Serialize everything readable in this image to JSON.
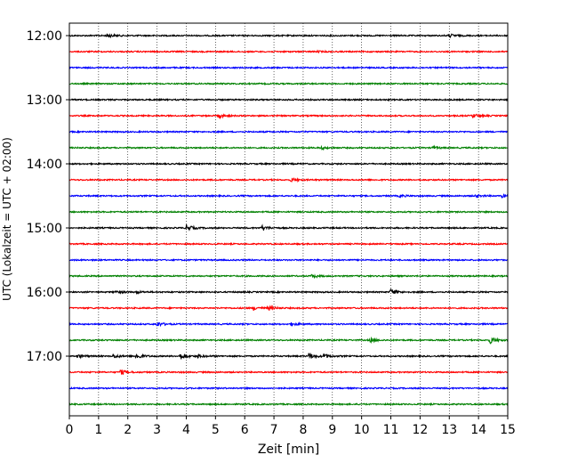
{
  "chart_data": {
    "type": "line",
    "title": "",
    "xlabel": "Zeit  [min]",
    "ylabel": "UTC (Lokalzeit = UTC + 02:00)",
    "xlim": [
      0,
      15
    ],
    "x_ticks": [
      "0",
      "1",
      "2",
      "3",
      "4",
      "5",
      "6",
      "7",
      "8",
      "9",
      "10",
      "11",
      "12",
      "13",
      "14",
      "15"
    ],
    "y_ticks": [
      "12:00",
      "13:00",
      "14:00",
      "15:00",
      "16:00",
      "17:00"
    ],
    "grid": "vertical dotted at each minute",
    "trace_interval_min": 15,
    "trace_colors": [
      "#000000",
      "#ff0000",
      "#0000ff",
      "#008000"
    ],
    "series": [
      {
        "start": "12:00",
        "events": [
          {
            "t": 1.3,
            "amp": 3.5
          },
          {
            "t": 13.0,
            "amp": 3
          }
        ]
      },
      {
        "start": "12:15",
        "events": [
          {
            "t": 8.5,
            "amp": 1.2
          }
        ]
      },
      {
        "start": "12:30",
        "events": []
      },
      {
        "start": "12:45",
        "events": []
      },
      {
        "start": "13:00",
        "events": []
      },
      {
        "start": "13:15",
        "events": [
          {
            "t": 5.1,
            "amp": 4
          },
          {
            "t": 13.8,
            "amp": 4
          }
        ]
      },
      {
        "start": "13:30",
        "events": []
      },
      {
        "start": "13:45",
        "events": [
          {
            "t": 8.6,
            "amp": 2.5
          },
          {
            "t": 12.4,
            "amp": 2.5
          }
        ]
      },
      {
        "start": "14:00",
        "events": []
      },
      {
        "start": "14:15",
        "events": [
          {
            "t": 7.6,
            "amp": 3.5
          }
        ]
      },
      {
        "start": "14:30",
        "events": [
          {
            "t": 11.3,
            "amp": 2
          },
          {
            "t": 13.9,
            "amp": 2.5
          },
          {
            "t": 14.8,
            "amp": 2.5
          }
        ]
      },
      {
        "start": "14:45",
        "events": []
      },
      {
        "start": "15:00",
        "events": [
          {
            "t": 4.0,
            "amp": 6
          },
          {
            "t": 6.6,
            "amp": 5
          }
        ]
      },
      {
        "start": "15:15",
        "events": []
      },
      {
        "start": "15:30",
        "events": []
      },
      {
        "start": "15:45",
        "events": [
          {
            "t": 8.3,
            "amp": 3
          }
        ]
      },
      {
        "start": "16:00",
        "events": [
          {
            "t": 1.6,
            "amp": 3
          },
          {
            "t": 2.3,
            "amp": 2
          },
          {
            "t": 11.0,
            "amp": 6
          }
        ]
      },
      {
        "start": "16:15",
        "events": [
          {
            "t": 6.3,
            "amp": 3.5
          },
          {
            "t": 6.8,
            "amp": 3.5
          }
        ]
      },
      {
        "start": "16:30",
        "events": [
          {
            "t": 3.0,
            "amp": 4.5
          },
          {
            "t": 7.6,
            "amp": 3
          }
        ]
      },
      {
        "start": "16:45",
        "events": [
          {
            "t": 10.3,
            "amp": 4
          },
          {
            "t": 14.4,
            "amp": 6.5
          }
        ]
      },
      {
        "start": "17:00",
        "events": [
          {
            "t": 0.3,
            "amp": 3
          },
          {
            "t": 1.5,
            "amp": 4
          },
          {
            "t": 2.3,
            "amp": 6
          },
          {
            "t": 3.8,
            "amp": 6
          },
          {
            "t": 4.4,
            "amp": 3
          },
          {
            "t": 8.2,
            "amp": 6
          },
          {
            "t": 8.7,
            "amp": 4
          }
        ]
      },
      {
        "start": "17:15",
        "events": [
          {
            "t": 1.75,
            "amp": 5
          }
        ]
      },
      {
        "start": "17:30",
        "events": []
      },
      {
        "start": "17:45",
        "events": []
      }
    ]
  }
}
